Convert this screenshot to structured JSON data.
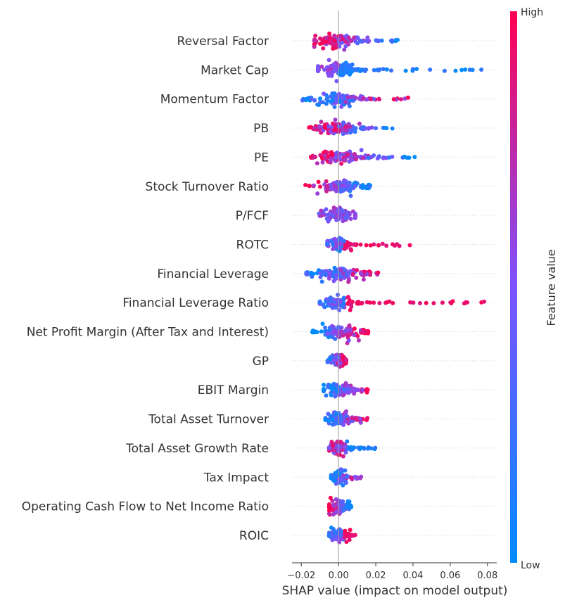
{
  "chart_data": {
    "type": "scatter",
    "subtype": "shap-beeswarm",
    "xlabel": "SHAP value (impact on model output)",
    "xlim": [
      -0.025,
      0.085
    ],
    "x_ticks": [
      "−0.02",
      "0.00",
      "0.02",
      "0.04",
      "0.06",
      "0.08"
    ],
    "x_tick_values": [
      -0.02,
      0.0,
      0.02,
      0.04,
      0.06,
      0.08
    ],
    "colorbar": {
      "label": "Feature value",
      "high_label": "High",
      "low_label": "Low",
      "low_color": "#008bfb",
      "mid_color": "#7c52ff",
      "high_color": "#ff0052"
    },
    "grid": false,
    "features": [
      {
        "name": "Reversal Factor",
        "min": -0.013,
        "max": 0.032,
        "low_side": "right",
        "mix": "mixed"
      },
      {
        "name": "Market Cap",
        "min": -0.011,
        "max": 0.08,
        "low_side": "right",
        "mix": "low-dominant"
      },
      {
        "name": "Momentum Factor",
        "min": -0.02,
        "max": 0.041,
        "low_side": "left",
        "mix": "mixed"
      },
      {
        "name": "PB",
        "min": -0.016,
        "max": 0.031,
        "low_side": "right",
        "mix": "mixed"
      },
      {
        "name": "PE",
        "min": -0.015,
        "max": 0.041,
        "low_side": "right",
        "mix": "mixed"
      },
      {
        "name": "Stock Turnover Ratio",
        "min": -0.018,
        "max": 0.017,
        "low_side": "right",
        "mix": "mixed"
      },
      {
        "name": "P/FCF",
        "min": -0.011,
        "max": 0.009,
        "low_side": "left",
        "mix": "mid"
      },
      {
        "name": "ROTC",
        "min": -0.006,
        "max": 0.041,
        "low_side": "left",
        "mix": "high-right"
      },
      {
        "name": "Financial Leverage",
        "min": -0.019,
        "max": 0.023,
        "low_side": "left",
        "mix": "mixed"
      },
      {
        "name": "Financial Leverage Ratio",
        "min": -0.01,
        "max": 0.08,
        "low_side": "left",
        "mix": "high-right"
      },
      {
        "name": "Net Profit Margin (After Tax and Interest)",
        "min": -0.014,
        "max": 0.016,
        "low_side": "left",
        "mix": "mixed"
      },
      {
        "name": "GP",
        "min": -0.006,
        "max": 0.004,
        "low_side": "left",
        "mix": "mixed"
      },
      {
        "name": "EBIT Margin",
        "min": -0.008,
        "max": 0.016,
        "low_side": "left",
        "mix": "mixed"
      },
      {
        "name": "Total Asset Turnover",
        "min": -0.007,
        "max": 0.016,
        "low_side": "left",
        "mix": "mixed"
      },
      {
        "name": "Total Asset Growth Rate",
        "min": -0.005,
        "max": 0.031,
        "low_side": "right",
        "mix": "low-right"
      },
      {
        "name": "Tax Impact",
        "min": -0.004,
        "max": 0.015,
        "low_side": "left",
        "mix": "mixed"
      },
      {
        "name": "Operating Cash Flow to Net Income Ratio",
        "min": -0.005,
        "max": 0.007,
        "low_side": "right",
        "mix": "mixed"
      },
      {
        "name": "ROIC",
        "min": -0.005,
        "max": 0.01,
        "low_side": "left",
        "mix": "high-right"
      }
    ]
  }
}
